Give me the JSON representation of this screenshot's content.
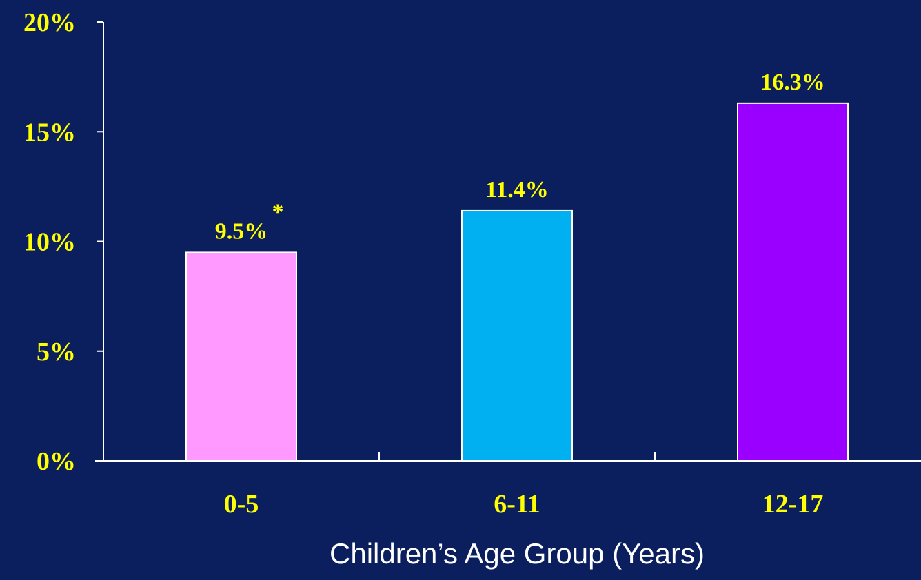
{
  "colors": {
    "background": "#0b1f5e",
    "axis": "#ffffff",
    "label_text": "#ffff00",
    "title_text": "#ffffff"
  },
  "chart_data": {
    "type": "bar",
    "title": "",
    "xlabel": "Children’s Age Group (Years)",
    "ylabel": "",
    "categories": [
      "0-5",
      "6-11",
      "12-17"
    ],
    "values": [
      9.5,
      11.4,
      16.3
    ],
    "data_labels": [
      "9.5%",
      "11.4%",
      "16.3%"
    ],
    "annotations": [
      "*",
      "",
      ""
    ],
    "bar_colors": [
      "#ff99ff",
      "#00b0f0",
      "#9900ff"
    ],
    "ylim": [
      0,
      20
    ],
    "yticks": [
      0,
      5,
      10,
      15,
      20
    ],
    "ytick_labels": [
      "0%",
      "5%",
      "10%",
      "15%",
      "20%"
    ],
    "grid": false,
    "legend": false
  }
}
